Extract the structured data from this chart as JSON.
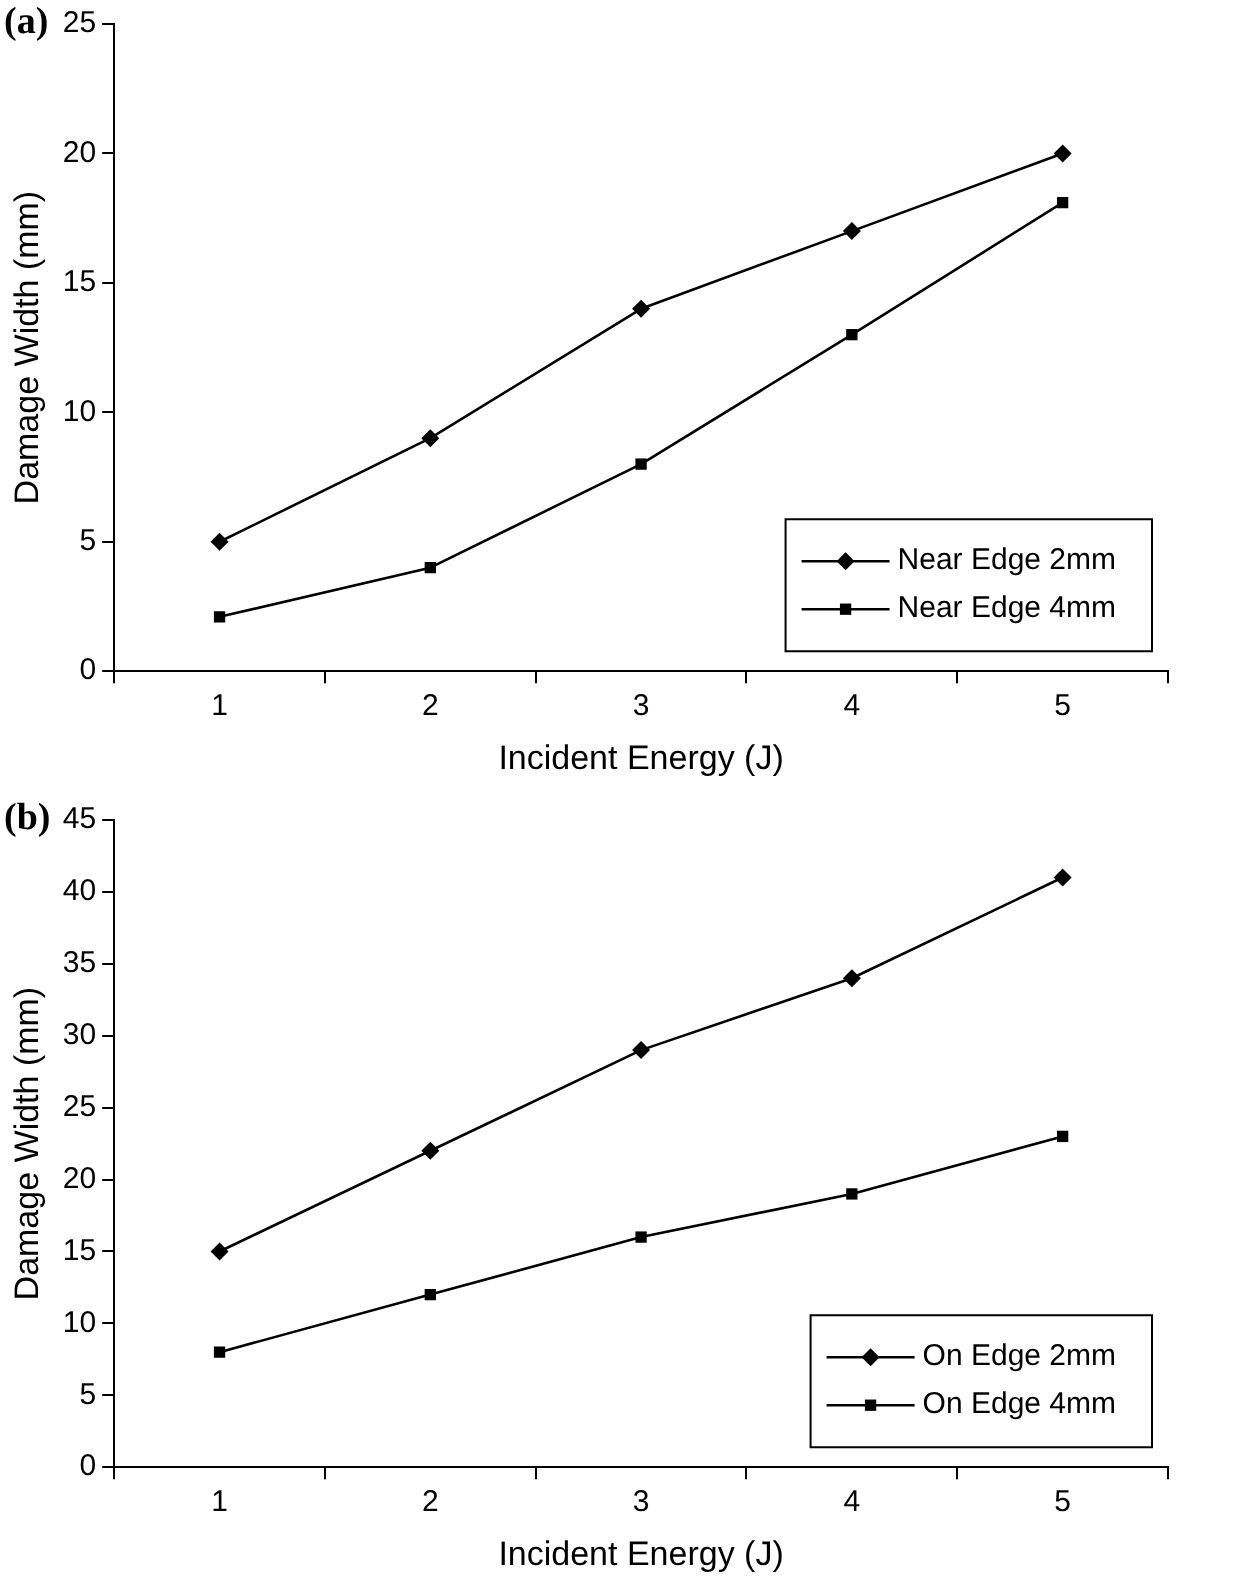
{
  "chart_data": [
    {
      "type": "line",
      "title": "(a)",
      "xlabel": "Incident Energy (J)",
      "ylabel": "Damage Width (mm)",
      "categories": [
        "1",
        "2",
        "3",
        "4",
        "5"
      ],
      "series": [
        {
          "name": "Near Edge 2mm",
          "color": "#000000",
          "marker": "diamond",
          "values": [
            5,
            9,
            14,
            17,
            20
          ]
        },
        {
          "name": "Near Edge 4mm",
          "color": "#000000",
          "marker": "square",
          "values": [
            2.1,
            4,
            8,
            13,
            18.1
          ]
        }
      ],
      "ylim": [
        0,
        25
      ],
      "yticks": [
        0,
        5,
        10,
        15,
        20,
        25
      ],
      "grid": false,
      "legend": "bottom right",
      "line_style": "solid"
    },
    {
      "type": "line",
      "title": "(b)",
      "xlabel": "Incident Energy (J)",
      "ylabel": "Damage Width (mm)",
      "categories": [
        "1",
        "2",
        "3",
        "4",
        "5"
      ],
      "series": [
        {
          "name": "On Edge 2mm",
          "color": "#000000",
          "marker": "diamond",
          "values": [
            15,
            22,
            29,
            34,
            41
          ]
        },
        {
          "name": "On Edge 4mm",
          "color": "#000000",
          "marker": "square",
          "values": [
            8,
            12,
            16,
            19,
            23
          ]
        }
      ],
      "ylim": [
        0,
        45
      ],
      "yticks": [
        0,
        5,
        10,
        15,
        20,
        25,
        30,
        35,
        40,
        45
      ],
      "grid": false,
      "legend": "bottom right",
      "line_style": "solid"
    }
  ]
}
